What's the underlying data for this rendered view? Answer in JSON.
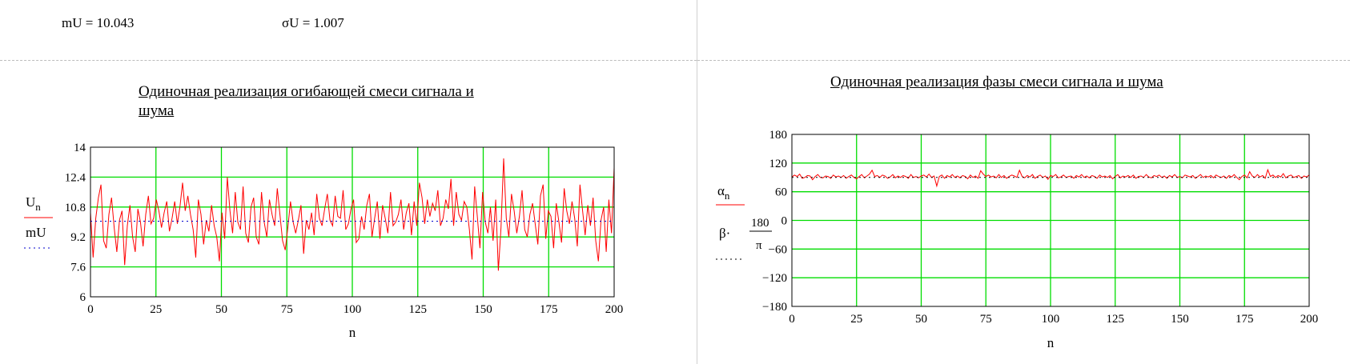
{
  "stats": {
    "mU_label": "mU",
    "mU_value": "10.043",
    "sigmaU_label": "σU",
    "sigmaU_value": "1.007"
  },
  "chart_data": [
    {
      "type": "line",
      "title_line1": "Одиночная реализация огибающей смеси сигнала и",
      "title_line2": "шума",
      "xlabel": "n",
      "xlim": [
        0,
        200
      ],
      "ylim": [
        6,
        14
      ],
      "xticks": [
        "0",
        "25",
        "50",
        "75",
        "100",
        "125",
        "150",
        "175",
        "200"
      ],
      "yticks": [
        "6",
        "7.6",
        "9.2",
        "10.8",
        "12.4",
        "14"
      ],
      "grid": true,
      "legend": {
        "series1": "U",
        "series1_sub": "n",
        "series2": "mU"
      },
      "series": [
        {
          "name": "U_n",
          "color": "#ff0000",
          "style": "solid",
          "values": [
            10.5,
            8.1,
            10.2,
            11.3,
            12.0,
            9.0,
            8.6,
            10.4,
            11.3,
            9.7,
            8.4,
            10.1,
            10.6,
            7.7,
            9.8,
            10.9,
            9.2,
            8.4,
            10.7,
            10.0,
            8.7,
            10.4,
            11.4,
            9.9,
            10.2,
            11.2,
            10.6,
            9.7,
            10.5,
            11.1,
            9.5,
            10.2,
            11.1,
            9.9,
            10.8,
            12.1,
            10.6,
            11.4,
            10.4,
            9.6,
            8.1,
            11.2,
            10.4,
            8.8,
            10.1,
            9.5,
            10.9,
            9.8,
            9.2,
            7.9,
            10.5,
            9.1,
            12.4,
            10.6,
            9.4,
            11.6,
            10.0,
            9.6,
            11.9,
            9.4,
            8.9,
            10.8,
            11.3,
            9.2,
            8.8,
            11.6,
            10.0,
            9.2,
            11.2,
            10.4,
            9.8,
            11.8,
            10.4,
            9.0,
            8.5,
            9.7,
            11.1,
            10.0,
            9.4,
            10.1,
            10.9,
            8.3,
            10.1,
            9.6,
            10.5,
            9.3,
            11.5,
            10.2,
            9.8,
            10.7,
            11.5,
            10.1,
            9.8,
            11.4,
            10.3,
            10.2,
            11.7,
            9.6,
            9.9,
            10.7,
            11.2,
            8.9,
            9.1,
            10.3,
            9.6,
            10.9,
            11.5,
            9.2,
            10.2,
            11.1,
            9.1,
            10.9,
            10.2,
            9.4,
            11.6,
            9.8,
            10.0,
            10.4,
            11.2,
            9.6,
            10.5,
            11.0,
            9.3,
            11.1,
            9.8,
            12.1,
            11.3,
            9.9,
            11.2,
            10.3,
            11.0,
            10.6,
            11.7,
            9.8,
            10.2,
            11.2,
            10.7,
            12.3,
            9.8,
            11.6,
            10.4,
            10.1,
            11.1,
            10.8,
            9.6,
            8.0,
            11.9,
            10.3,
            8.6,
            11.6,
            10.0,
            9.4,
            10.8,
            9.0,
            11.2,
            7.4,
            9.7,
            13.4,
            10.2,
            9.2,
            11.5,
            10.6,
            9.4,
            10.3,
            11.7,
            9.6,
            9.2,
            10.4,
            11.0,
            9.9,
            8.8,
            11.4,
            12.0,
            9.1,
            10.6,
            10.3,
            8.6,
            11.0,
            10.0,
            8.9,
            11.8,
            10.6,
            9.9,
            11.1,
            10.2,
            8.7,
            12.0,
            10.6,
            9.3,
            10.9,
            9.8,
            11.3,
            9.0,
            7.9,
            10.1,
            10.8,
            8.4,
            11.2,
            9.4,
            12.9
          ]
        },
        {
          "name": "mU",
          "color": "#0000cc",
          "style": "dotted",
          "values": [
            10.043
          ]
        }
      ]
    },
    {
      "type": "line",
      "title": "Одиночная реализация фазы  смеси сигнала и шума",
      "xlabel": "n",
      "xlim": [
        0,
        200
      ],
      "ylim": [
        -180,
        180
      ],
      "xticks": [
        "0",
        "25",
        "50",
        "75",
        "100",
        "125",
        "150",
        "175",
        "200"
      ],
      "yticks": [
        "180",
        "120",
        "60",
        "0",
        "−60",
        "−120",
        "−180"
      ],
      "grid": true,
      "legend": {
        "series1": "α",
        "series1_sub": "n",
        "series2_prefix": "β·",
        "series2_num": "180",
        "series2_den": "π"
      },
      "series": [
        {
          "name": "α_n",
          "color": "#ff0000",
          "style": "solid",
          "values": [
            91,
            95,
            92,
            97,
            88,
            90,
            94,
            93,
            85,
            92,
            96,
            90,
            89,
            93,
            92,
            88,
            95,
            91,
            93,
            90,
            94,
            88,
            92,
            95,
            90,
            87,
            92,
            96,
            89,
            93,
            97,
            105,
            92,
            94,
            90,
            95,
            93,
            88,
            91,
            96,
            89,
            93,
            90,
            94,
            92,
            88,
            96,
            90,
            92,
            89,
            93,
            95,
            91,
            97,
            90,
            93,
            72,
            92,
            95,
            88,
            94,
            91,
            96,
            90,
            93,
            89,
            94,
            92,
            87,
            95,
            90,
            93,
            88,
            104,
            97,
            92,
            95,
            91,
            93,
            89,
            96,
            90,
            94,
            88,
            92,
            95,
            93,
            90,
            105,
            92,
            89,
            94,
            91,
            96,
            88,
            92,
            95,
            90,
            93,
            86,
            94,
            92,
            96,
            89,
            91,
            95,
            90,
            92,
            93,
            88,
            94,
            91,
            96,
            90,
            93,
            89,
            94,
            92,
            88,
            95,
            91,
            93,
            90,
            94,
            87,
            92,
            96,
            89,
            93,
            91,
            94,
            90,
            95,
            88,
            92,
            93,
            90,
            96,
            91,
            89,
            94,
            92,
            95,
            90,
            93,
            88,
            94,
            91,
            96,
            90,
            92,
            89,
            95,
            93,
            91,
            94,
            88,
            92,
            96,
            90,
            93,
            91,
            94,
            89,
            95,
            92,
            90,
            93,
            88,
            94,
            91,
            96,
            90,
            85,
            92,
            95,
            89,
            102,
            93,
            90,
            96,
            91,
            94,
            88,
            106,
            92,
            95,
            90,
            94,
            91,
            98,
            89,
            93,
            95,
            90,
            92,
            94,
            88,
            93,
            91,
            95
          ]
        },
        {
          "name": "β·180/π",
          "color": "#000000",
          "style": "dotted",
          "values": [
            90
          ]
        }
      ]
    }
  ]
}
